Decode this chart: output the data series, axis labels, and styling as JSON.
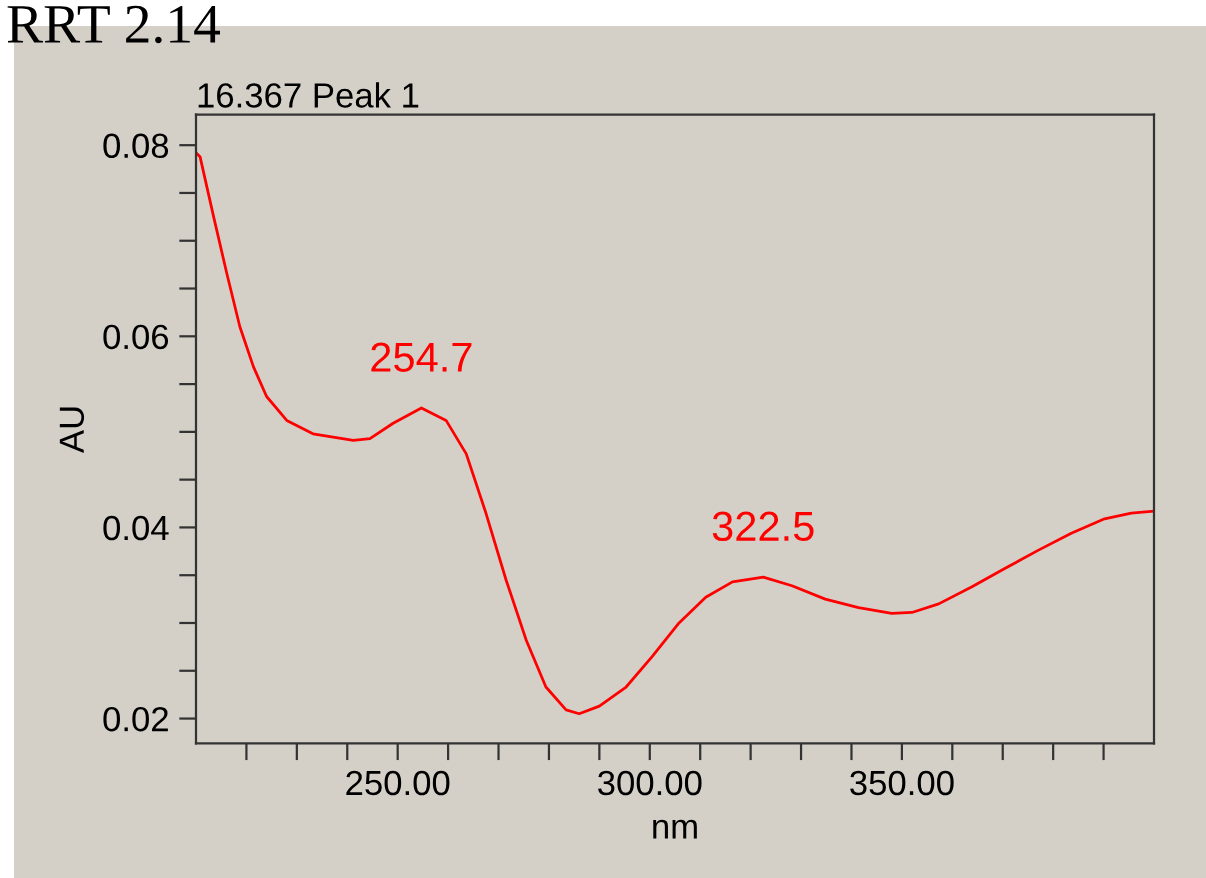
{
  "chart_data": {
    "type": "line",
    "title": "RRT 2.14",
    "subtitle": "16.367 Peak 1",
    "xlabel": "nm",
    "ylabel": "AU",
    "x": [
      210,
      210.8,
      213.5,
      216.1,
      218.7,
      221.4,
      224.0,
      228.0,
      233.2,
      241.2,
      244.5,
      249.1,
      254.7,
      259.6,
      263.6,
      267.5,
      271.5,
      275.5,
      279.4,
      283.4,
      286.0,
      290.0,
      295.3,
      300.5,
      305.8,
      311.1,
      316.4,
      322.5,
      328.2,
      334.8,
      341.4,
      348.0,
      352.0,
      357.3,
      363.9,
      370.4,
      377.0,
      383.6,
      390.2,
      395.5,
      400
    ],
    "series": [
      {
        "color": "#ff0000",
        "values": [
          0.0792,
          0.0788,
          0.0725,
          0.0666,
          0.061,
          0.0568,
          0.0537,
          0.0512,
          0.0498,
          0.0491,
          0.0493,
          0.0509,
          0.0525,
          0.0512,
          0.0477,
          0.0415,
          0.0345,
          0.0282,
          0.0233,
          0.0209,
          0.0205,
          0.0213,
          0.0233,
          0.0265,
          0.03,
          0.0327,
          0.0343,
          0.0348,
          0.0339,
          0.0325,
          0.0316,
          0.031,
          0.0311,
          0.032,
          0.0338,
          0.0357,
          0.0376,
          0.0394,
          0.0409,
          0.0415,
          0.0417
        ]
      }
    ],
    "annotations": [
      {
        "text": "254.7",
        "x": 254.7,
        "y": 0.0525
      },
      {
        "text": "322.5",
        "x": 322.5,
        "y": 0.0348
      }
    ],
    "xlim": [
      210,
      400
    ],
    "xticks": [
      {
        "value": 220,
        "label": null
      },
      {
        "value": 230,
        "label": null
      },
      {
        "value": 240,
        "label": null
      },
      {
        "value": 250,
        "label": "250.00"
      },
      {
        "value": 260,
        "label": null
      },
      {
        "value": 270,
        "label": null
      },
      {
        "value": 280,
        "label": null
      },
      {
        "value": 290,
        "label": null
      },
      {
        "value": 300,
        "label": "300.00"
      },
      {
        "value": 310,
        "label": null
      },
      {
        "value": 320,
        "label": null
      },
      {
        "value": 330,
        "label": null
      },
      {
        "value": 340,
        "label": null
      },
      {
        "value": 350,
        "label": "350.00"
      },
      {
        "value": 360,
        "label": null
      },
      {
        "value": 370,
        "label": null
      },
      {
        "value": 380,
        "label": null
      },
      {
        "value": 390,
        "label": null
      }
    ],
    "ylim": [
      0.0174,
      0.0832
    ],
    "yticks": [
      0.02,
      {
        "value": 0.025,
        "label": null
      },
      {
        "value": 0.03,
        "label": null
      },
      {
        "value": 0.035,
        "label": null
      },
      0.04,
      {
        "value": 0.045,
        "label": null
      },
      {
        "value": 0.05,
        "label": null
      },
      {
        "value": 0.055,
        "label": null
      },
      0.06,
      {
        "value": 0.065,
        "label": null
      },
      {
        "value": 0.07,
        "label": null
      },
      {
        "value": 0.075,
        "label": null
      },
      0.08
    ],
    "grid": false,
    "legend": false,
    "marker": "none",
    "line_style": "solid"
  }
}
